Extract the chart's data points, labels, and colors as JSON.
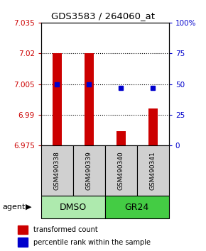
{
  "title": "GDS3583 / 264060_at",
  "samples": [
    "GSM490338",
    "GSM490339",
    "GSM490340",
    "GSM490341"
  ],
  "bar_values": [
    7.02,
    7.02,
    6.982,
    6.993
  ],
  "bar_base": 6.975,
  "blue_dot_values": [
    7.005,
    7.005,
    7.003,
    7.003
  ],
  "ylim": [
    6.975,
    7.035
  ],
  "yticks_left": [
    6.975,
    6.99,
    7.005,
    7.02,
    7.035
  ],
  "yticks_right": [
    0,
    25,
    50,
    75,
    100
  ],
  "yticks_right_labels": [
    "0",
    "25",
    "50",
    "75",
    "100%"
  ],
  "bar_color": "#cc0000",
  "dot_color": "#0000cc",
  "grid_yticks": [
    6.99,
    7.005,
    7.02
  ],
  "legend_items": [
    {
      "label": "transformed count",
      "color": "#cc0000"
    },
    {
      "label": "percentile rank within the sample",
      "color": "#0000cc"
    }
  ],
  "bar_width": 0.28,
  "sample_box_color": "#d0d0d0",
  "agent_row_color_dmso": "#aeeaae",
  "agent_row_color_gr24": "#44cc44",
  "agent_info": [
    {
      "label": "DMSO",
      "start": 0,
      "end": 2
    },
    {
      "label": "GR24",
      "start": 2,
      "end": 4
    }
  ]
}
